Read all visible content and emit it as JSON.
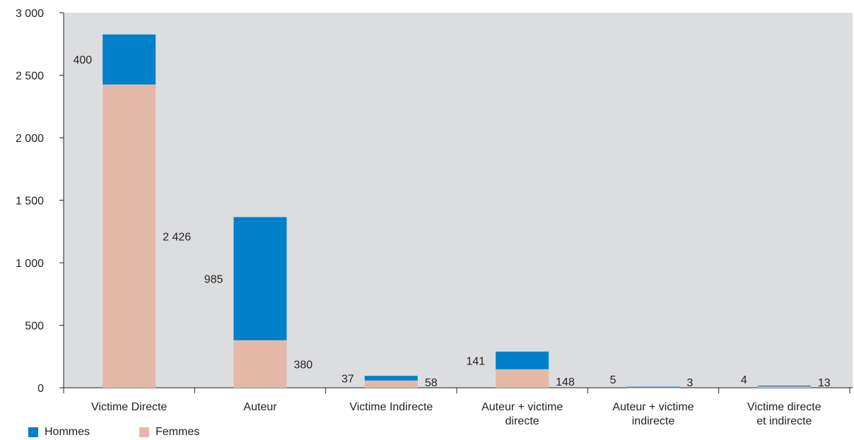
{
  "chart_data": {
    "type": "bar",
    "stacked": true,
    "categories": [
      [
        "Victime Directe"
      ],
      [
        "Auteur"
      ],
      [
        "Victime Indirecte"
      ],
      [
        "Auteur + victime",
        "directe"
      ],
      [
        "Auteur + victime",
        "indirecte"
      ],
      [
        "Victime directe",
        "et indirecte"
      ]
    ],
    "series": [
      {
        "name": "Femmes",
        "color": "#e4b8a8",
        "values": [
          2426,
          380,
          58,
          148,
          3,
          13
        ]
      },
      {
        "name": "Hommes",
        "color": "#0080c8",
        "values": [
          400,
          985,
          37,
          141,
          5,
          4
        ]
      }
    ],
    "yticks": [
      "0",
      "500",
      "1 000",
      "1 500",
      "2 000",
      "2 500",
      "3 000"
    ],
    "ylim": [
      0,
      3000
    ],
    "plot_background": "#dcdddf",
    "legend": [
      {
        "label": "Hommes",
        "color": "#0080c8"
      },
      {
        "label": "Femmes",
        "color": "#e4b8a8"
      }
    ],
    "value_labels": {
      "Hommes": [
        "400",
        "985",
        "37",
        "141",
        "5",
        "4"
      ],
      "Femmes": [
        "2 426",
        "380",
        "58",
        "148",
        "3",
        "13"
      ]
    }
  }
}
